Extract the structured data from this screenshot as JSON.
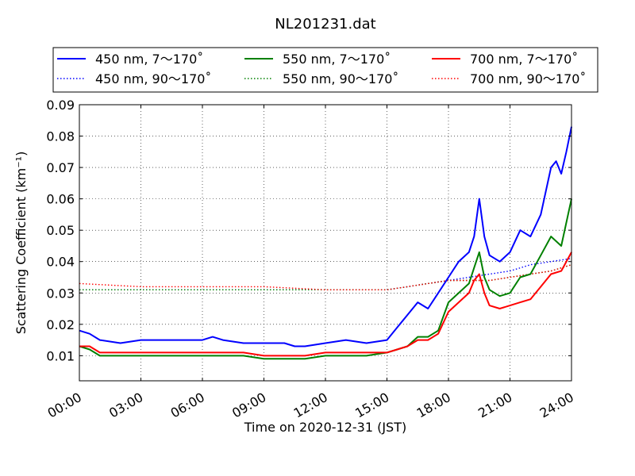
{
  "chart_data": {
    "type": "line",
    "title": "NL201231.dat",
    "xlabel": "Time on 2020-12-31 (JST)",
    "ylabel": "Scattering Coefficient (km⁻¹)",
    "xlim": [
      "00:00",
      "24:00"
    ],
    "x_ticks": [
      "00:00",
      "03:00",
      "06:00",
      "09:00",
      "12:00",
      "15:00",
      "18:00",
      "21:00",
      "24:00"
    ],
    "ylim": [
      0.002,
      0.09
    ],
    "y_ticks": [
      "0.01",
      "0.02",
      "0.03",
      "0.04",
      "0.05",
      "0.06",
      "0.07",
      "0.08",
      "0.09"
    ],
    "grid": true,
    "legend_position": "top",
    "series": [
      {
        "name": "450 nm, 7～170˚",
        "color": "#0000ff",
        "style": "solid",
        "points": [
          [
            "00:00",
            0.018
          ],
          [
            "00:30",
            0.017
          ],
          [
            "01:00",
            0.015
          ],
          [
            "02:00",
            0.014
          ],
          [
            "03:00",
            0.015
          ],
          [
            "04:00",
            0.015
          ],
          [
            "05:00",
            0.015
          ],
          [
            "06:00",
            0.015
          ],
          [
            "06:30",
            0.016
          ],
          [
            "07:00",
            0.015
          ],
          [
            "08:00",
            0.014
          ],
          [
            "09:00",
            0.014
          ],
          [
            "10:00",
            0.014
          ],
          [
            "10:30",
            0.013
          ],
          [
            "11:00",
            0.013
          ],
          [
            "12:00",
            0.014
          ],
          [
            "13:00",
            0.015
          ],
          [
            "14:00",
            0.014
          ],
          [
            "15:00",
            0.015
          ],
          [
            "15:30",
            0.019
          ],
          [
            "16:00",
            0.023
          ],
          [
            "16:30",
            0.027
          ],
          [
            "17:00",
            0.025
          ],
          [
            "17:30",
            0.03
          ],
          [
            "18:00",
            0.035
          ],
          [
            "18:30",
            0.04
          ],
          [
            "19:00",
            0.043
          ],
          [
            "19:15",
            0.048
          ],
          [
            "19:30",
            0.06
          ],
          [
            "19:45",
            0.048
          ],
          [
            "20:00",
            0.042
          ],
          [
            "20:30",
            0.04
          ],
          [
            "21:00",
            0.043
          ],
          [
            "21:30",
            0.05
          ],
          [
            "22:00",
            0.048
          ],
          [
            "22:30",
            0.055
          ],
          [
            "23:00",
            0.07
          ],
          [
            "23:15",
            0.072
          ],
          [
            "23:30",
            0.068
          ],
          [
            "23:45",
            0.075
          ],
          [
            "24:00",
            0.083
          ]
        ]
      },
      {
        "name": "450 nm, 90～170˚",
        "color": "#0000ff",
        "style": "dotted",
        "points": [
          [
            "00:00",
            0.031
          ],
          [
            "03:00",
            0.031
          ],
          [
            "06:00",
            0.031
          ],
          [
            "09:00",
            0.031
          ],
          [
            "12:00",
            0.031
          ],
          [
            "15:00",
            0.031
          ],
          [
            "16:00",
            0.032
          ],
          [
            "17:00",
            0.033
          ],
          [
            "18:00",
            0.034
          ],
          [
            "19:00",
            0.035
          ],
          [
            "20:00",
            0.036
          ],
          [
            "21:00",
            0.037
          ],
          [
            "22:00",
            0.039
          ],
          [
            "23:00",
            0.04
          ],
          [
            "24:00",
            0.041
          ]
        ]
      },
      {
        "name": "550 nm, 7～170˚",
        "color": "#008000",
        "style": "solid",
        "points": [
          [
            "00:00",
            0.013
          ],
          [
            "00:30",
            0.012
          ],
          [
            "01:00",
            0.01
          ],
          [
            "02:00",
            0.01
          ],
          [
            "03:00",
            0.01
          ],
          [
            "04:00",
            0.01
          ],
          [
            "05:00",
            0.01
          ],
          [
            "06:00",
            0.01
          ],
          [
            "07:00",
            0.01
          ],
          [
            "08:00",
            0.01
          ],
          [
            "09:00",
            0.009
          ],
          [
            "10:00",
            0.009
          ],
          [
            "11:00",
            0.009
          ],
          [
            "12:00",
            0.01
          ],
          [
            "13:00",
            0.01
          ],
          [
            "14:00",
            0.01
          ],
          [
            "15:00",
            0.011
          ],
          [
            "15:30",
            0.012
          ],
          [
            "16:00",
            0.013
          ],
          [
            "16:30",
            0.016
          ],
          [
            "17:00",
            0.016
          ],
          [
            "17:30",
            0.018
          ],
          [
            "18:00",
            0.027
          ],
          [
            "18:30",
            0.03
          ],
          [
            "19:00",
            0.033
          ],
          [
            "19:15",
            0.038
          ],
          [
            "19:30",
            0.043
          ],
          [
            "19:45",
            0.035
          ],
          [
            "20:00",
            0.031
          ],
          [
            "20:30",
            0.029
          ],
          [
            "21:00",
            0.03
          ],
          [
            "21:30",
            0.035
          ],
          [
            "22:00",
            0.036
          ],
          [
            "22:30",
            0.042
          ],
          [
            "23:00",
            0.048
          ],
          [
            "23:30",
            0.045
          ],
          [
            "24:00",
            0.06
          ]
        ]
      },
      {
        "name": "550 nm, 90～170˚",
        "color": "#008000",
        "style": "dotted",
        "points": [
          [
            "00:00",
            0.031
          ],
          [
            "03:00",
            0.031
          ],
          [
            "06:00",
            0.031
          ],
          [
            "09:00",
            0.031
          ],
          [
            "12:00",
            0.031
          ],
          [
            "15:00",
            0.031
          ],
          [
            "16:00",
            0.032
          ],
          [
            "17:00",
            0.033
          ],
          [
            "18:00",
            0.034
          ],
          [
            "19:00",
            0.034
          ],
          [
            "20:00",
            0.034
          ],
          [
            "21:00",
            0.035
          ],
          [
            "22:00",
            0.036
          ],
          [
            "23:00",
            0.037
          ],
          [
            "24:00",
            0.039
          ]
        ]
      },
      {
        "name": "700 nm, 7～170˚",
        "color": "#ff0000",
        "style": "solid",
        "points": [
          [
            "00:00",
            0.013
          ],
          [
            "00:30",
            0.013
          ],
          [
            "01:00",
            0.011
          ],
          [
            "02:00",
            0.011
          ],
          [
            "03:00",
            0.011
          ],
          [
            "04:00",
            0.011
          ],
          [
            "05:00",
            0.011
          ],
          [
            "06:00",
            0.011
          ],
          [
            "07:00",
            0.011
          ],
          [
            "08:00",
            0.011
          ],
          [
            "09:00",
            0.01
          ],
          [
            "10:00",
            0.01
          ],
          [
            "11:00",
            0.01
          ],
          [
            "12:00",
            0.011
          ],
          [
            "13:00",
            0.011
          ],
          [
            "14:00",
            0.011
          ],
          [
            "15:00",
            0.011
          ],
          [
            "15:30",
            0.012
          ],
          [
            "16:00",
            0.013
          ],
          [
            "16:30",
            0.015
          ],
          [
            "17:00",
            0.015
          ],
          [
            "17:30",
            0.017
          ],
          [
            "18:00",
            0.024
          ],
          [
            "18:30",
            0.027
          ],
          [
            "19:00",
            0.03
          ],
          [
            "19:15",
            0.034
          ],
          [
            "19:30",
            0.036
          ],
          [
            "19:45",
            0.03
          ],
          [
            "20:00",
            0.026
          ],
          [
            "20:30",
            0.025
          ],
          [
            "21:00",
            0.026
          ],
          [
            "21:30",
            0.027
          ],
          [
            "22:00",
            0.028
          ],
          [
            "22:30",
            0.032
          ],
          [
            "23:00",
            0.036
          ],
          [
            "23:30",
            0.037
          ],
          [
            "24:00",
            0.043
          ]
        ]
      },
      {
        "name": "700 nm, 90～170˚",
        "color": "#ff0000",
        "style": "dotted",
        "points": [
          [
            "00:00",
            0.033
          ],
          [
            "03:00",
            0.032
          ],
          [
            "06:00",
            0.032
          ],
          [
            "09:00",
            0.032
          ],
          [
            "12:00",
            0.031
          ],
          [
            "15:00",
            0.031
          ],
          [
            "16:00",
            0.032
          ],
          [
            "17:00",
            0.033
          ],
          [
            "18:00",
            0.034
          ],
          [
            "19:00",
            0.034
          ],
          [
            "20:00",
            0.034
          ],
          [
            "21:00",
            0.035
          ],
          [
            "22:00",
            0.036
          ],
          [
            "23:00",
            0.037
          ],
          [
            "24:00",
            0.039
          ]
        ]
      }
    ]
  }
}
